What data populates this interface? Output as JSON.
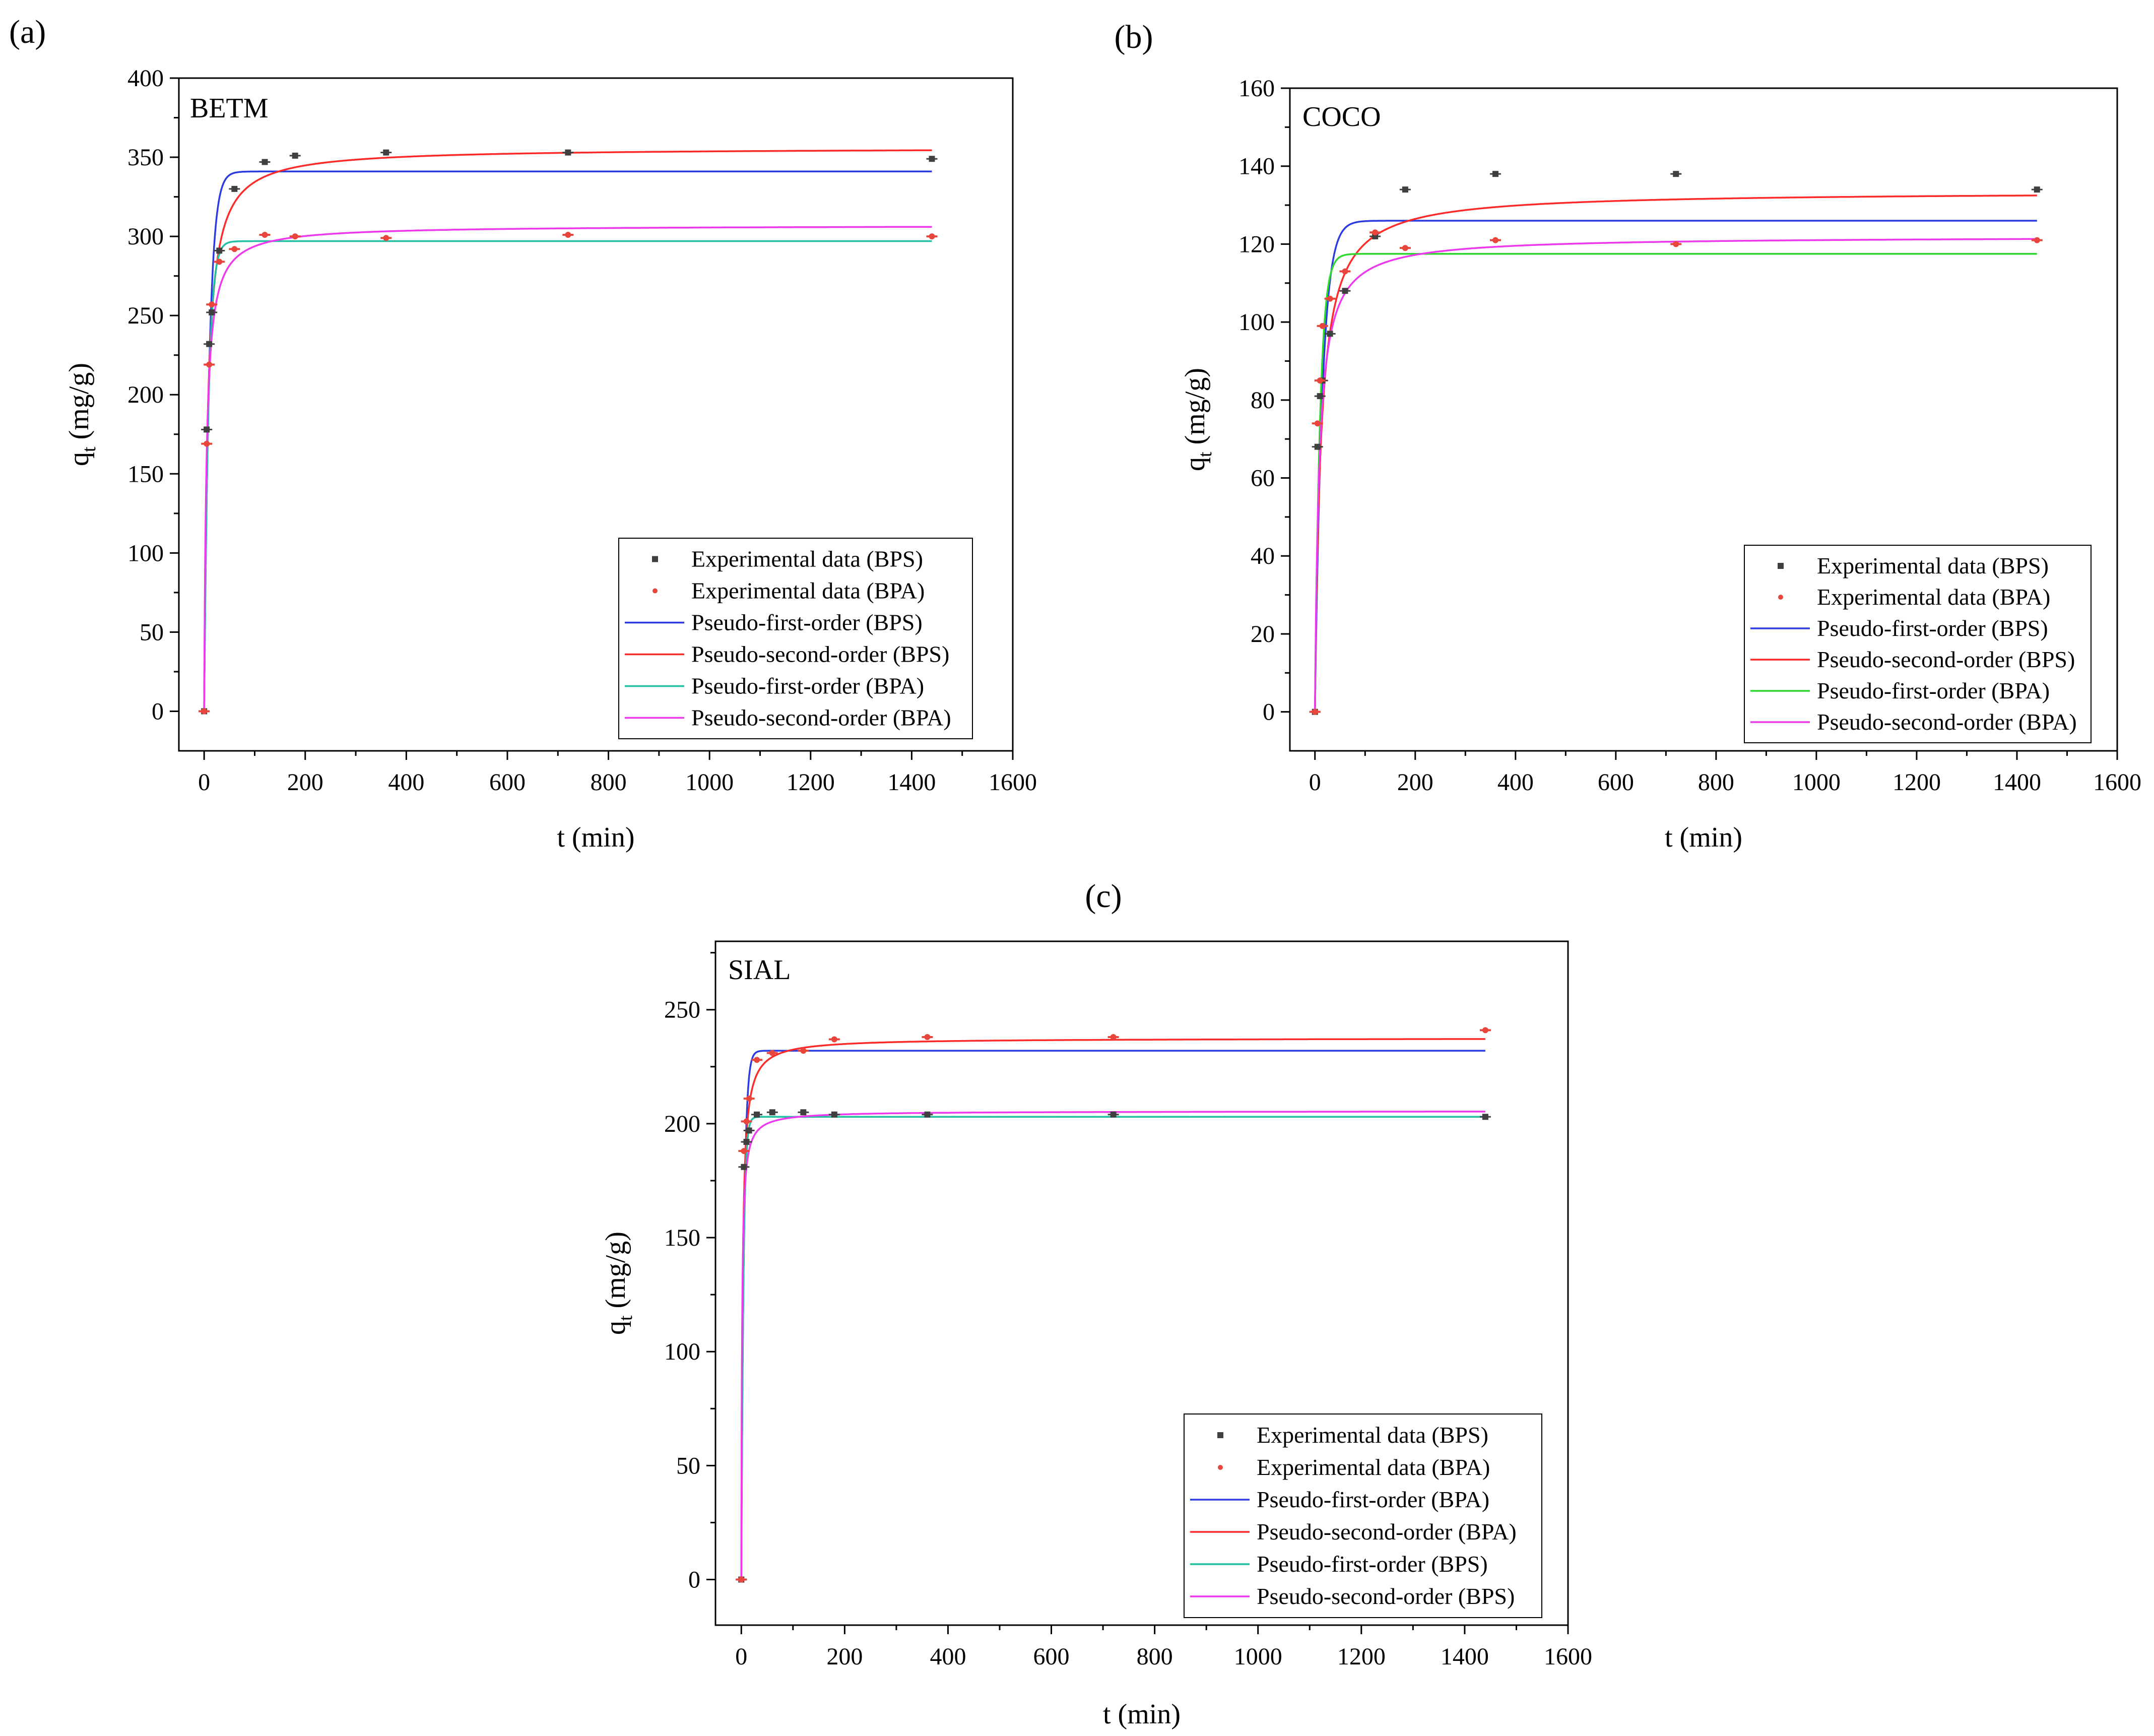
{
  "figure": {
    "panels": [
      {
        "panel_label": "(a)",
        "sample": "BETM",
        "x_label": "t (min)",
        "y_label_base": "q",
        "y_label_sub": "t",
        "y_label_unit": " (mg/g)",
        "legend": [
          {
            "label": "Experimental data (BPS)",
            "kind": "marker",
            "color": "#404040"
          },
          {
            "label": "Experimental data (BPA)",
            "kind": "marker",
            "color": "#e8453c"
          },
          {
            "label": "Pseudo-first-order (BPS)",
            "kind": "line",
            "color": "#2b3be0"
          },
          {
            "label": "Pseudo-second-order (BPS)",
            "kind": "line",
            "color": "#ff2a2a"
          },
          {
            "label": "Pseudo-first-order (BPA)",
            "kind": "line",
            "color": "#20c0a0"
          },
          {
            "label": "Pseudo-second-order (BPA)",
            "kind": "line",
            "color": "#ee38ee"
          }
        ]
      },
      {
        "panel_label": "(b)",
        "sample": "COCO",
        "x_label": "t (min)",
        "y_label_base": "q",
        "y_label_sub": "t",
        "y_label_unit": " (mg/g)",
        "legend": [
          {
            "label": "Experimental data (BPS)",
            "kind": "marker",
            "color": "#404040"
          },
          {
            "label": "Experimental data (BPA)",
            "kind": "marker",
            "color": "#e8453c"
          },
          {
            "label": "Pseudo-first-order (BPS)",
            "kind": "line",
            "color": "#2b3be0"
          },
          {
            "label": "Pseudo-second-order (BPS)",
            "kind": "line",
            "color": "#ff2a2a"
          },
          {
            "label": "Pseudo-first-order (BPA)",
            "kind": "line",
            "color": "#2ed82e"
          },
          {
            "label": "Pseudo-second-order (BPA)",
            "kind": "line",
            "color": "#ee38ee"
          }
        ]
      },
      {
        "panel_label": "(c)",
        "sample": "SIAL",
        "x_label": "t (min)",
        "y_label_base": "q",
        "y_label_sub": "t",
        "y_label_unit": " (mg/g)",
        "legend": [
          {
            "label": "Experimental data (BPS)",
            "kind": "marker",
            "color": "#404040"
          },
          {
            "label": "Experimental data (BPA)",
            "kind": "marker",
            "color": "#e8453c"
          },
          {
            "label": "Pseudo-first-order (BPA)",
            "kind": "line",
            "color": "#2b3be0"
          },
          {
            "label": "Pseudo-second-order (BPA)",
            "kind": "line",
            "color": "#ff2a2a"
          },
          {
            "label": "Pseudo-first-order (BPS)",
            "kind": "line",
            "color": "#20c0a0"
          },
          {
            "label": "Pseudo-second-order (BPS)",
            "kind": "line",
            "color": "#ee38ee"
          }
        ]
      }
    ]
  },
  "chart_data": [
    {
      "type": "scatter",
      "title": "BETM",
      "xlabel": "t (min)",
      "ylabel": "qt (mg/g)",
      "xlim": [
        -50,
        1600
      ],
      "ylim": [
        -25,
        400
      ],
      "xticks": [
        0,
        200,
        400,
        600,
        800,
        1000,
        1200,
        1400,
        1600
      ],
      "yticks": [
        0,
        50,
        100,
        150,
        200,
        250,
        300,
        350,
        400
      ],
      "legend_position": "bottom-right",
      "series": [
        {
          "name": "Experimental data (BPS)",
          "kind": "points",
          "color": "#404040",
          "x": [
            0,
            5,
            10,
            15,
            30,
            60,
            120,
            180,
            360,
            720,
            1440
          ],
          "y": [
            0,
            178,
            232,
            252,
            291,
            330,
            347,
            351,
            353,
            353,
            349
          ]
        },
        {
          "name": "Experimental data (BPA)",
          "kind": "points",
          "color": "#e8453c",
          "x": [
            0,
            5,
            10,
            15,
            30,
            60,
            120,
            180,
            360,
            720,
            1440
          ],
          "y": [
            0,
            169,
            219,
            257,
            284,
            292,
            301,
            300,
            299,
            301,
            300
          ]
        },
        {
          "name": "Pseudo-first-order (BPS)",
          "kind": "pfo",
          "color": "#2b3be0",
          "qe": 341,
          "k": 0.1
        },
        {
          "name": "Pseudo-second-order (BPS)",
          "kind": "pso",
          "color": "#ff2a2a",
          "qe": 356,
          "h": 55
        },
        {
          "name": "Pseudo-first-order (BPA)",
          "kind": "pfo",
          "color": "#20c0a0",
          "qe": 297,
          "k": 0.12
        },
        {
          "name": "Pseudo-second-order (BPA)",
          "kind": "pso",
          "color": "#ee38ee",
          "qe": 307,
          "h": 68
        }
      ]
    },
    {
      "type": "scatter",
      "title": "COCO",
      "xlabel": "t (min)",
      "ylabel": "qt (mg/g)",
      "xlim": [
        -50,
        1600
      ],
      "ylim": [
        -10,
        160
      ],
      "xticks": [
        0,
        200,
        400,
        600,
        800,
        1000,
        1200,
        1400,
        1600
      ],
      "yticks": [
        0,
        20,
        40,
        60,
        80,
        100,
        120,
        140,
        160
      ],
      "legend_position": "bottom-right",
      "series": [
        {
          "name": "Experimental data (BPS)",
          "kind": "points",
          "color": "#404040",
          "x": [
            0,
            5,
            10,
            15,
            30,
            60,
            120,
            180,
            360,
            720,
            1440
          ],
          "y": [
            0,
            68,
            81,
            85,
            97,
            108,
            122,
            134,
            138,
            138,
            134
          ]
        },
        {
          "name": "Experimental data (BPA)",
          "kind": "points",
          "color": "#e8453c",
          "x": [
            0,
            5,
            10,
            15,
            30,
            60,
            120,
            180,
            360,
            720,
            1440
          ],
          "y": [
            0,
            74,
            85,
            99,
            106,
            113,
            123,
            119,
            121,
            120,
            121
          ]
        },
        {
          "name": "Pseudo-first-order (BPS)",
          "kind": "pfo",
          "color": "#2b3be0",
          "qe": 126,
          "k": 0.07
        },
        {
          "name": "Pseudo-second-order (BPS)",
          "kind": "pso",
          "color": "#ff2a2a",
          "qe": 133.5,
          "h": 12
        },
        {
          "name": "Pseudo-first-order (BPA)",
          "kind": "pfo",
          "color": "#2ed82e",
          "qe": 117.5,
          "k": 0.1
        },
        {
          "name": "Pseudo-second-order (BPA)",
          "kind": "pso",
          "color": "#ee38ee",
          "qe": 122,
          "h": 15
        }
      ]
    },
    {
      "type": "scatter",
      "title": "SIAL",
      "xlabel": "t (min)",
      "ylabel": "qt (mg/g)",
      "xlim": [
        -50,
        1600
      ],
      "ylim": [
        -20,
        280
      ],
      "xticks": [
        0,
        200,
        400,
        600,
        800,
        1000,
        1200,
        1400,
        1600
      ],
      "yticks": [
        0,
        50,
        100,
        150,
        200,
        250
      ],
      "legend_position": "bottom-right",
      "series": [
        {
          "name": "Experimental data (BPS)",
          "kind": "points",
          "color": "#404040",
          "x": [
            0,
            5,
            10,
            15,
            30,
            60,
            120,
            180,
            360,
            720,
            1440
          ],
          "y": [
            0,
            181,
            192,
            197,
            204,
            205,
            205,
            204,
            204,
            204,
            203
          ]
        },
        {
          "name": "Experimental data (BPA)",
          "kind": "points",
          "color": "#e8453c",
          "x": [
            0,
            5,
            10,
            15,
            30,
            60,
            120,
            180,
            360,
            720,
            1440
          ],
          "y": [
            0,
            188,
            201,
            211,
            228,
            231,
            232,
            237,
            238,
            238,
            241
          ]
        },
        {
          "name": "Pseudo-first-order (BPA)",
          "kind": "pfo",
          "color": "#2b3be0",
          "qe": 232,
          "k": 0.2
        },
        {
          "name": "Pseudo-second-order (BPA)",
          "kind": "pso",
          "color": "#ff2a2a",
          "qe": 237.5,
          "h": 110
        },
        {
          "name": "Pseudo-first-order (BPS)",
          "kind": "pfo",
          "color": "#20c0a0",
          "qe": 203,
          "k": 0.25
        },
        {
          "name": "Pseudo-second-order (BPS)",
          "kind": "pso",
          "color": "#ee38ee",
          "qe": 205.5,
          "h": 150
        }
      ]
    }
  ]
}
